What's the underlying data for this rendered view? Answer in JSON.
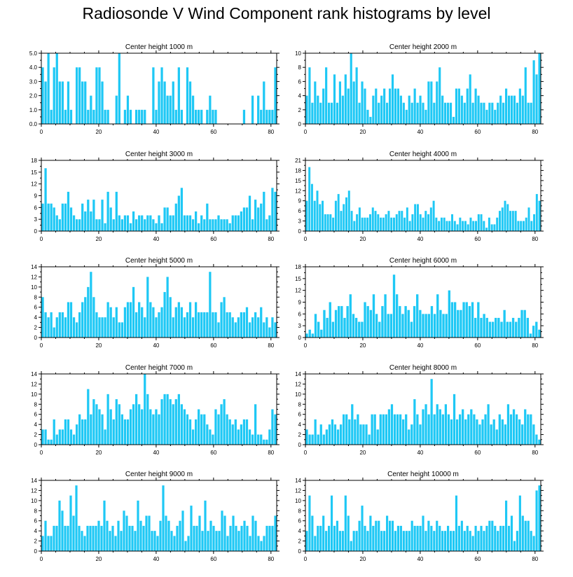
{
  "title": "Radiosonde V Wind Component rank histograms by level",
  "colors": {
    "bar": "#1ec8f5",
    "axis": "#000000",
    "background": "#ffffff"
  },
  "chart_data": [
    {
      "type": "bar",
      "title": "Center height 1000 m",
      "ylim": [
        0,
        5
      ],
      "yticks": [
        0,
        1,
        2,
        3,
        4,
        5
      ],
      "ytick_labels": [
        "0.0",
        "1.0",
        "2.0",
        "3.0",
        "4.0",
        "5.0"
      ],
      "xticks": [
        0,
        20,
        40,
        60,
        80
      ],
      "xlim": [
        0,
        82
      ],
      "values": [
        4,
        3,
        5,
        1,
        4,
        5,
        3,
        3,
        1,
        3,
        1,
        0,
        4,
        4,
        3,
        3,
        1,
        2,
        1,
        4,
        4,
        3,
        1,
        1,
        0,
        0,
        2,
        5,
        0,
        1,
        2,
        1,
        0,
        1,
        1,
        1,
        1,
        0,
        0,
        4,
        1,
        3,
        4,
        3,
        2,
        2,
        3,
        1,
        4,
        1,
        0,
        4,
        3,
        2,
        1,
        1,
        1,
        0,
        1,
        2,
        1,
        1,
        0,
        0,
        0,
        0,
        0,
        0,
        0,
        0,
        0,
        1,
        0,
        0,
        2,
        0,
        2,
        1,
        3,
        1,
        1,
        1,
        4
      ]
    },
    {
      "type": "bar",
      "title": "Center height 2000 m",
      "ylim": [
        0,
        10
      ],
      "yticks": [
        0,
        2,
        4,
        6,
        8,
        10
      ],
      "ytick_labels": [
        "0",
        "2",
        "4",
        "6",
        "8",
        "10"
      ],
      "xticks": [
        0,
        20,
        40,
        60,
        80
      ],
      "xlim": [
        0,
        82
      ],
      "values": [
        4,
        8,
        3,
        6,
        4,
        3,
        5,
        8,
        3,
        3,
        7,
        3,
        6,
        4,
        7,
        5,
        10,
        6,
        8,
        3,
        6,
        5,
        2,
        1,
        4,
        5,
        3,
        4,
        5,
        3,
        5,
        7,
        5,
        5,
        4,
        3,
        2,
        4,
        3,
        5,
        3,
        4,
        3,
        2,
        6,
        6,
        3,
        6,
        8,
        4,
        3,
        3,
        3,
        1,
        5,
        5,
        4,
        3,
        5,
        7,
        3,
        5,
        4,
        3,
        3,
        2,
        3,
        3,
        2,
        3,
        4,
        3,
        5,
        4,
        4,
        4,
        3,
        5,
        4,
        8,
        3,
        3,
        9,
        7,
        10
      ]
    },
    {
      "type": "bar",
      "title": "Center height 3000 m",
      "ylim": [
        0,
        18
      ],
      "yticks": [
        0,
        3,
        6,
        9,
        12,
        15,
        18
      ],
      "ytick_labels": [
        "0",
        "3",
        "6",
        "9",
        "12",
        "15",
        "18"
      ],
      "xticks": [
        0,
        20,
        40,
        60,
        80
      ],
      "xlim": [
        0,
        82
      ],
      "values": [
        7,
        16,
        7,
        7,
        6,
        4,
        3,
        7,
        7,
        10,
        6,
        4,
        3,
        3,
        7,
        5,
        8,
        5,
        8,
        3,
        3,
        8,
        2,
        10,
        6,
        3,
        10,
        4,
        3,
        4,
        4,
        2,
        5,
        3,
        4,
        4,
        3,
        4,
        4,
        3,
        2,
        4,
        2,
        6,
        6,
        4,
        4,
        7,
        9,
        11,
        4,
        4,
        4,
        3,
        5,
        2,
        4,
        3,
        7,
        3,
        3,
        3,
        4,
        3,
        3,
        3,
        2,
        4,
        4,
        4,
        5,
        6,
        6,
        9,
        3,
        8,
        6,
        7,
        10,
        3,
        4,
        11,
        10
      ]
    },
    {
      "type": "bar",
      "title": "Center height 4000 m",
      "ylim": [
        0,
        21
      ],
      "yticks": [
        0,
        3,
        6,
        9,
        12,
        15,
        18,
        21
      ],
      "ytick_labels": [
        "0",
        "3",
        "6",
        "9",
        "12",
        "15",
        "18",
        "21"
      ],
      "xticks": [
        0,
        20,
        40,
        60,
        80
      ],
      "xlim": [
        0,
        82
      ],
      "values": [
        9,
        19,
        14,
        9,
        12,
        8,
        9,
        5,
        5,
        5,
        4,
        9,
        11,
        6,
        8,
        10,
        12,
        6,
        3,
        5,
        7,
        4,
        4,
        4,
        5,
        7,
        6,
        5,
        4,
        4,
        5,
        6,
        4,
        4,
        5,
        6,
        6,
        4,
        7,
        3,
        5,
        8,
        8,
        5,
        4,
        6,
        5,
        7,
        9,
        4,
        3,
        4,
        4,
        3,
        3,
        5,
        3,
        2,
        4,
        3,
        3,
        2,
        4,
        3,
        3,
        5,
        5,
        3,
        1,
        4,
        2,
        2,
        4,
        6,
        7,
        9,
        8,
        6,
        6,
        6,
        3,
        3,
        3,
        4,
        7,
        3,
        5,
        11,
        9
      ]
    },
    {
      "type": "bar",
      "title": "Center height 5000 m",
      "ylim": [
        0,
        14
      ],
      "yticks": [
        0,
        2,
        4,
        6,
        8,
        10,
        12,
        14
      ],
      "ytick_labels": [
        "0",
        "2",
        "4",
        "6",
        "8",
        "10",
        "12",
        "14"
      ],
      "xticks": [
        0,
        20,
        40,
        60,
        80
      ],
      "xlim": [
        0,
        82
      ],
      "values": [
        8,
        5,
        4,
        5,
        2,
        4,
        5,
        5,
        4,
        7,
        7,
        4,
        3,
        5,
        7,
        8,
        10,
        13,
        8,
        5,
        4,
        4,
        4,
        7,
        6,
        4,
        6,
        3,
        3,
        6,
        7,
        7,
        10,
        5,
        7,
        6,
        4,
        12,
        7,
        6,
        4,
        5,
        6,
        9,
        12,
        8,
        4,
        6,
        7,
        6,
        4,
        5,
        7,
        4,
        7,
        5,
        5,
        5,
        5,
        13,
        5,
        5,
        3,
        7,
        8,
        5,
        5,
        4,
        3,
        4,
        5,
        5,
        6,
        3,
        4,
        5,
        4,
        6,
        3,
        4,
        2,
        4,
        3
      ]
    },
    {
      "type": "bar",
      "title": "Center height 6000 m",
      "ylim": [
        0,
        18
      ],
      "yticks": [
        0,
        3,
        6,
        9,
        12,
        15,
        18
      ],
      "ytick_labels": [
        "0",
        "3",
        "6",
        "9",
        "12",
        "15",
        "18"
      ],
      "xticks": [
        0,
        20,
        40,
        60,
        80
      ],
      "xlim": [
        0,
        82
      ],
      "values": [
        1,
        2,
        1,
        6,
        4,
        2,
        7,
        5,
        9,
        4,
        7,
        8,
        8,
        5,
        8,
        11,
        6,
        5,
        4,
        4,
        9,
        8,
        7,
        11,
        6,
        4,
        8,
        11,
        6,
        6,
        16,
        11,
        8,
        6,
        8,
        7,
        4,
        8,
        11,
        7,
        6,
        6,
        6,
        8,
        6,
        11,
        7,
        6,
        6,
        12,
        9,
        9,
        7,
        7,
        9,
        9,
        8,
        9,
        5,
        9,
        5,
        6,
        5,
        4,
        4,
        5,
        5,
        4,
        7,
        4,
        4,
        5,
        4,
        5,
        7,
        7,
        5,
        1,
        3,
        4,
        2
      ]
    },
    {
      "type": "bar",
      "title": "Center height 7000 m",
      "ylim": [
        0,
        14
      ],
      "yticks": [
        0,
        2,
        4,
        6,
        8,
        10,
        12,
        14
      ],
      "ytick_labels": [
        "0",
        "2",
        "4",
        "6",
        "8",
        "10",
        "12",
        "14"
      ],
      "xticks": [
        0,
        20,
        40,
        60,
        80
      ],
      "xlim": [
        0,
        82
      ],
      "values": [
        3,
        3,
        1,
        1,
        5,
        2,
        3,
        3,
        5,
        5,
        3,
        2,
        4,
        6,
        5,
        5,
        11,
        6,
        9,
        8,
        7,
        6,
        3,
        10,
        7,
        5,
        9,
        8,
        6,
        5,
        5,
        7,
        8,
        10,
        8,
        7,
        14,
        10,
        7,
        6,
        7,
        6,
        9,
        10,
        10,
        9,
        8,
        9,
        10,
        8,
        7,
        6,
        5,
        3,
        5,
        7,
        6,
        6,
        4,
        3,
        2,
        7,
        6,
        8,
        9,
        6,
        5,
        4,
        5,
        3,
        4,
        5,
        5,
        3,
        2,
        8,
        2,
        2,
        1,
        1,
        3,
        7,
        6
      ]
    },
    {
      "type": "bar",
      "title": "Center height 8000 m",
      "ylim": [
        0,
        14
      ],
      "yticks": [
        0,
        2,
        4,
        6,
        8,
        10,
        12,
        14
      ],
      "ytick_labels": [
        "0",
        "2",
        "4",
        "6",
        "8",
        "10",
        "12",
        "14"
      ],
      "xticks": [
        0,
        20,
        40,
        60,
        80
      ],
      "xlim": [
        0,
        82
      ],
      "values": [
        3,
        2,
        2,
        5,
        2,
        4,
        2,
        3,
        4,
        5,
        4,
        3,
        4,
        6,
        6,
        5,
        8,
        5,
        6,
        4,
        4,
        4,
        2,
        6,
        6,
        3,
        6,
        6,
        6,
        7,
        8,
        6,
        6,
        6,
        5,
        6,
        3,
        4,
        9,
        6,
        4,
        7,
        8,
        6,
        13,
        6,
        8,
        7,
        6,
        8,
        6,
        5,
        10,
        5,
        6,
        7,
        5,
        6,
        7,
        6,
        5,
        4,
        5,
        6,
        8,
        4,
        5,
        3,
        6,
        5,
        4,
        8,
        6,
        7,
        6,
        5,
        4,
        7,
        6,
        6,
        4,
        2,
        1
      ]
    },
    {
      "type": "bar",
      "title": "Center height 9000 m",
      "ylim": [
        0,
        14
      ],
      "yticks": [
        0,
        2,
        4,
        6,
        8,
        10,
        12,
        14
      ],
      "ytick_labels": [
        "0",
        "2",
        "4",
        "6",
        "8",
        "10",
        "12",
        "14"
      ],
      "xticks": [
        0,
        20,
        40,
        60,
        80
      ],
      "xlim": [
        0,
        82
      ],
      "values": [
        3,
        6,
        3,
        3,
        5,
        5,
        10,
        8,
        5,
        5,
        11,
        7,
        13,
        5,
        4,
        3,
        5,
        5,
        5,
        5,
        6,
        5,
        10,
        6,
        4,
        5,
        3,
        6,
        4,
        8,
        7,
        5,
        5,
        4,
        10,
        6,
        5,
        7,
        7,
        4,
        4,
        3,
        6,
        13,
        7,
        6,
        4,
        3,
        5,
        6,
        8,
        2,
        3,
        9,
        5,
        5,
        7,
        4,
        10,
        4,
        6,
        5,
        4,
        4,
        8,
        7,
        3,
        5,
        7,
        5,
        4,
        5,
        6,
        5,
        3,
        7,
        6,
        3,
        2,
        3,
        5,
        5,
        5,
        7
      ]
    },
    {
      "type": "bar",
      "title": "Center height 10000 m",
      "ylim": [
        0,
        14
      ],
      "yticks": [
        0,
        2,
        4,
        6,
        8,
        10,
        12,
        14
      ],
      "ytick_labels": [
        "0",
        "2",
        "4",
        "6",
        "8",
        "10",
        "12",
        "14"
      ],
      "xticks": [
        0,
        20,
        40,
        60,
        80
      ],
      "xlim": [
        0,
        82
      ],
      "values": [
        4,
        11,
        7,
        3,
        5,
        5,
        7,
        4,
        5,
        11,
        5,
        6,
        4,
        4,
        11,
        7,
        2,
        4,
        4,
        6,
        9,
        5,
        4,
        7,
        5,
        6,
        6,
        4,
        4,
        7,
        6,
        6,
        4,
        5,
        5,
        4,
        4,
        4,
        6,
        5,
        5,
        5,
        7,
        4,
        6,
        5,
        4,
        6,
        5,
        4,
        4,
        5,
        4,
        4,
        11,
        5,
        6,
        4,
        5,
        4,
        3,
        5,
        4,
        5,
        4,
        5,
        6,
        6,
        5,
        4,
        5,
        5,
        10,
        5,
        7,
        2,
        4,
        11,
        7,
        6,
        6,
        4,
        3,
        12,
        13
      ]
    }
  ]
}
